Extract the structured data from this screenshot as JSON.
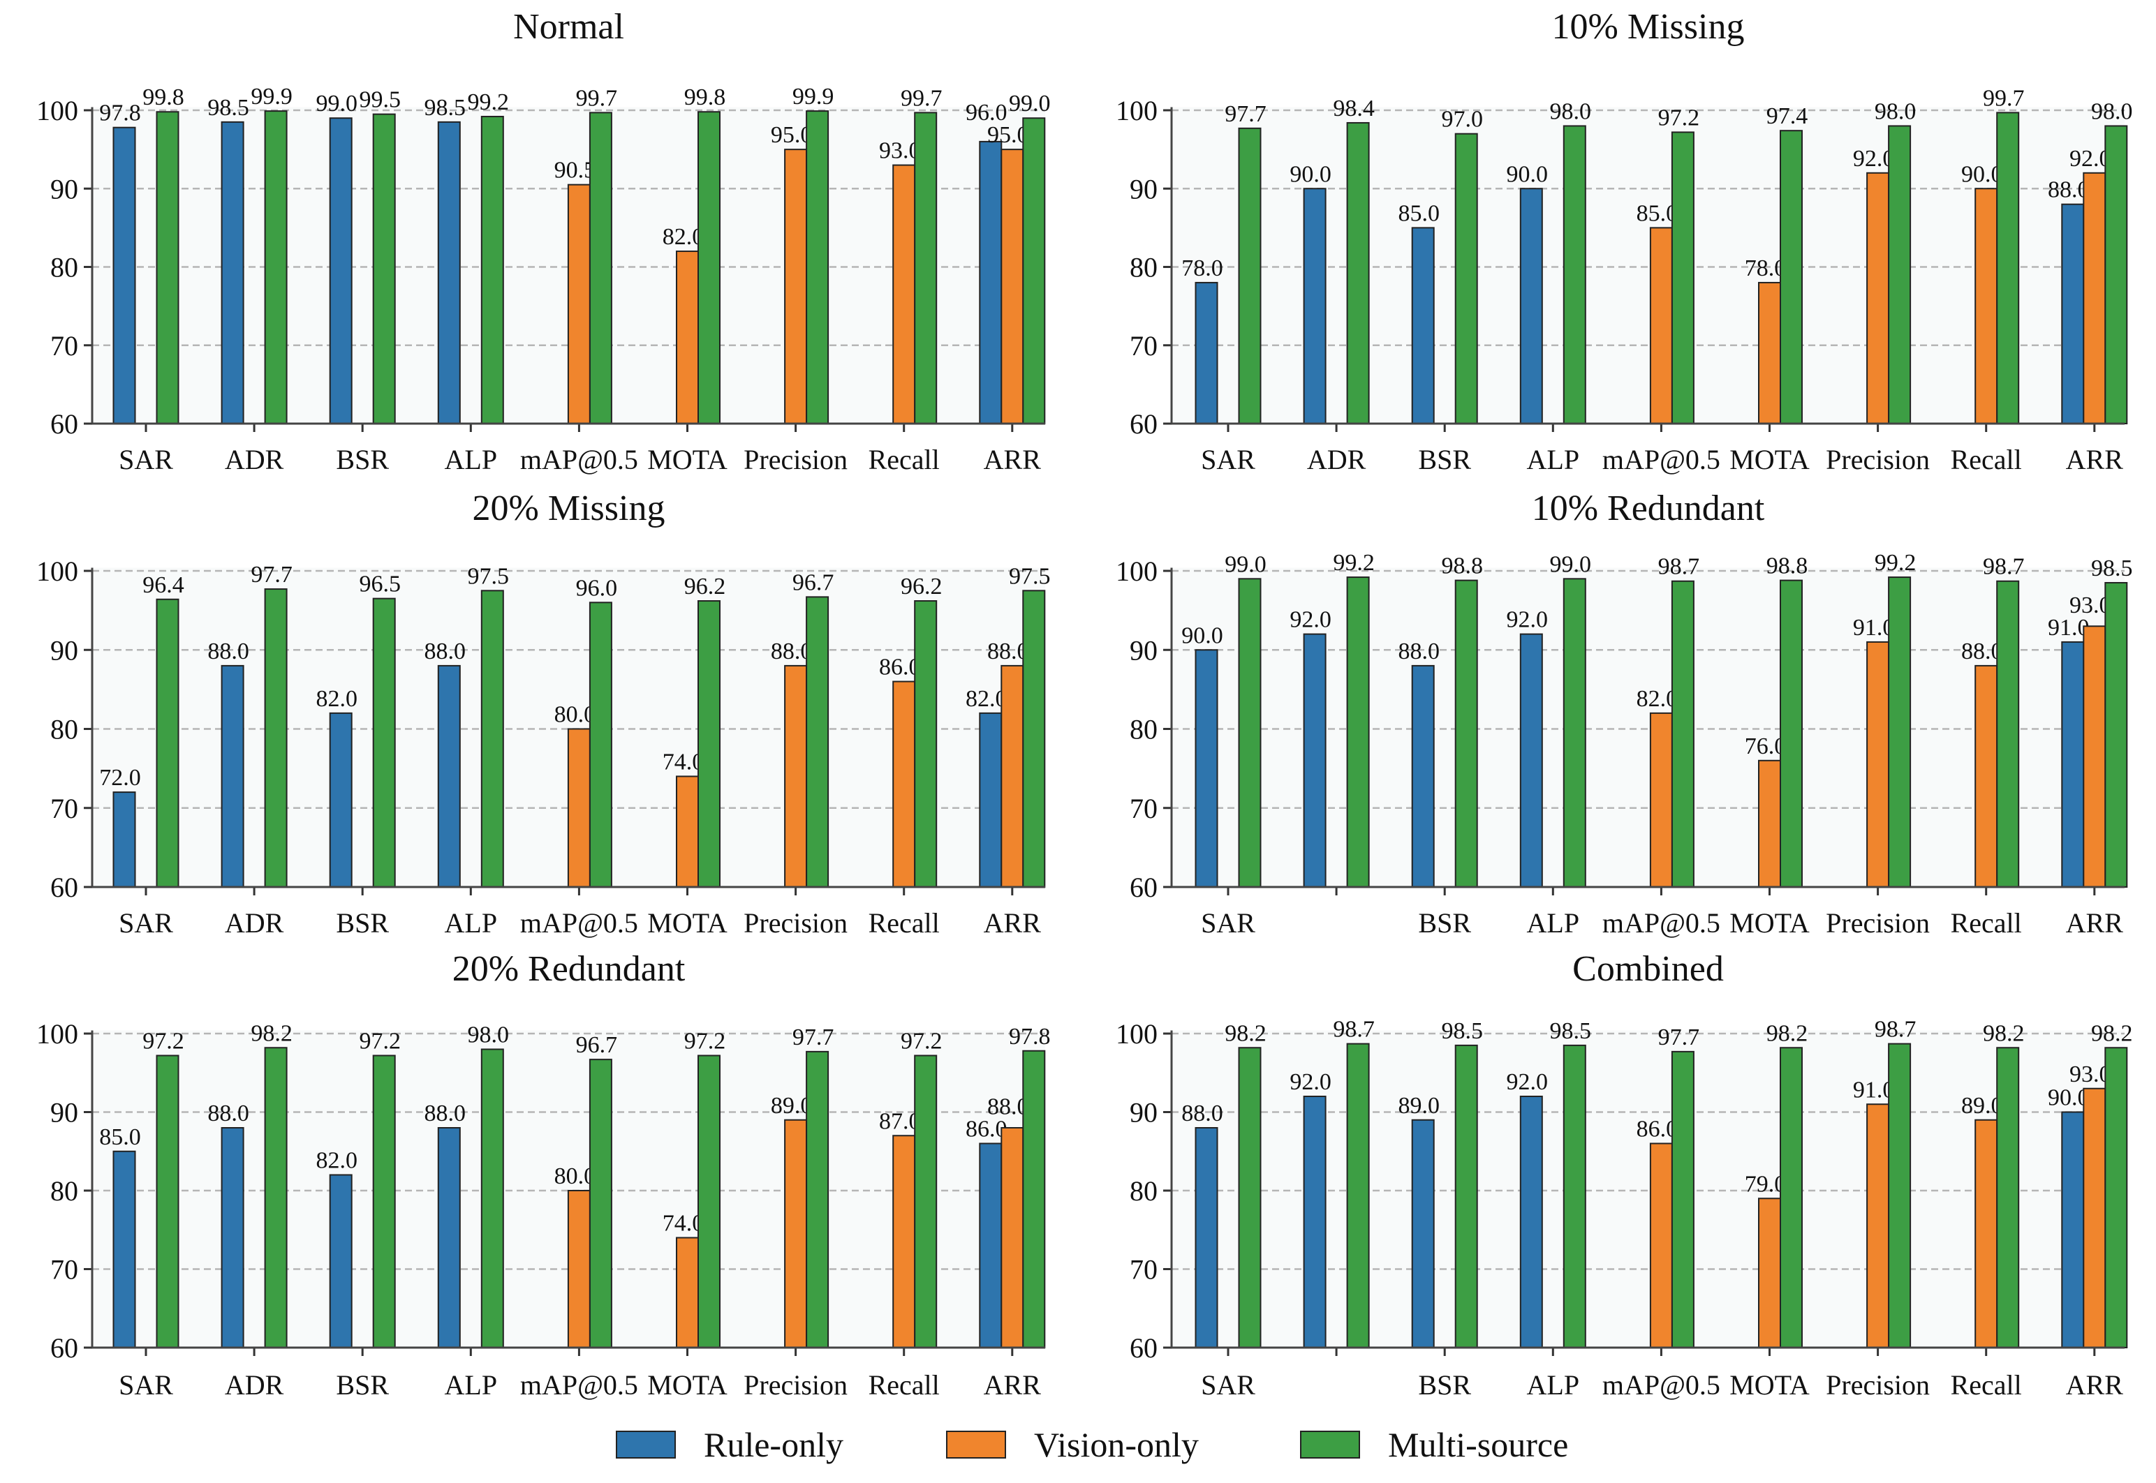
{
  "colors": {
    "rule": "#2e75ad",
    "vision": "#f0852d",
    "multi": "#3d9e44",
    "axes_bg": "#f8fafa",
    "grid": "#b5b5b5"
  },
  "legend": [
    {
      "label": "Rule-only",
      "series": "rule"
    },
    {
      "label": "Vision-only",
      "series": "vision"
    },
    {
      "label": "Multi-source",
      "series": "multi"
    }
  ],
  "chart_data": [
    {
      "type": "bar",
      "title": "Normal",
      "ylim": [
        60,
        100
      ],
      "yticks": [
        60,
        70,
        80,
        90,
        100
      ],
      "grid": true,
      "categories": [
        "SAR",
        "ADR",
        "BSR",
        "ALP",
        "mAP@0.5",
        "MOTA",
        "Precision",
        "Recall",
        "ARR"
      ],
      "series": [
        {
          "name": "Rule-only",
          "values": [
            97.8,
            98.5,
            99.0,
            98.5,
            null,
            null,
            null,
            null,
            96.0
          ]
        },
        {
          "name": "Vision-only",
          "values": [
            null,
            null,
            null,
            null,
            90.5,
            82.0,
            95.0,
            93.0,
            95.0
          ]
        },
        {
          "name": "Multi-source",
          "values": [
            99.8,
            99.9,
            99.5,
            99.2,
            99.7,
            99.8,
            99.9,
            99.7,
            99.0
          ]
        }
      ]
    },
    {
      "type": "bar",
      "title": "10% Missing",
      "ylim": [
        60,
        100
      ],
      "yticks": [
        60,
        70,
        80,
        90,
        100
      ],
      "grid": true,
      "categories": [
        "SAR",
        "ADR",
        "BSR",
        "ALP",
        "mAP@0.5",
        "MOTA",
        "Precision",
        "Recall",
        "ARR"
      ],
      "series": [
        {
          "name": "Rule-only",
          "values": [
            78.0,
            90.0,
            85.0,
            90.0,
            null,
            null,
            null,
            null,
            88.0
          ]
        },
        {
          "name": "Vision-only",
          "values": [
            null,
            null,
            null,
            null,
            85.0,
            78.0,
            92.0,
            90.0,
            92.0
          ]
        },
        {
          "name": "Multi-source",
          "values": [
            97.7,
            98.4,
            97.0,
            98.0,
            97.2,
            97.4,
            98.0,
            99.7,
            98.0
          ]
        }
      ]
    },
    {
      "type": "bar",
      "title": "20% Missing",
      "ylim": [
        60,
        100
      ],
      "yticks": [
        60,
        70,
        80,
        90,
        100
      ],
      "grid": true,
      "categories": [
        "SAR",
        "ADR",
        "BSR",
        "ALP",
        "mAP@0.5",
        "MOTA",
        "Precision",
        "Recall",
        "ARR"
      ],
      "series": [
        {
          "name": "Rule-only",
          "values": [
            72.0,
            88.0,
            82.0,
            88.0,
            null,
            null,
            null,
            null,
            82.0
          ]
        },
        {
          "name": "Vision-only",
          "values": [
            null,
            null,
            null,
            null,
            80.0,
            74.0,
            88.0,
            86.0,
            88.0
          ]
        },
        {
          "name": "Multi-source",
          "values": [
            96.4,
            97.7,
            96.5,
            97.5,
            96.0,
            96.2,
            96.7,
            96.2,
            97.5
          ]
        }
      ]
    },
    {
      "type": "bar",
      "title": "10% Redundant",
      "ylim": [
        60,
        100
      ],
      "yticks": [
        60,
        70,
        80,
        90,
        100
      ],
      "grid": true,
      "categories": [
        "SAR",
        "",
        "BSR",
        "ALP",
        "mAP@0.5",
        "MOTA",
        "Precision",
        "Recall",
        "ARR"
      ],
      "series": [
        {
          "name": "Rule-only",
          "values": [
            90.0,
            92.0,
            88.0,
            92.0,
            null,
            null,
            null,
            null,
            91.0
          ]
        },
        {
          "name": "Vision-only",
          "values": [
            null,
            null,
            null,
            null,
            82.0,
            76.0,
            91.0,
            88.0,
            93.0
          ]
        },
        {
          "name": "Multi-source",
          "values": [
            99.0,
            99.2,
            98.8,
            99.0,
            98.7,
            98.8,
            99.2,
            98.7,
            98.5
          ]
        }
      ]
    },
    {
      "type": "bar",
      "title": "20% Redundant",
      "ylim": [
        60,
        100
      ],
      "yticks": [
        60,
        70,
        80,
        90,
        100
      ],
      "grid": true,
      "categories": [
        "SAR",
        "ADR",
        "BSR",
        "ALP",
        "mAP@0.5",
        "MOTA",
        "Precision",
        "Recall",
        "ARR"
      ],
      "series": [
        {
          "name": "Rule-only",
          "values": [
            85.0,
            88.0,
            82.0,
            88.0,
            null,
            null,
            null,
            null,
            86.0
          ]
        },
        {
          "name": "Vision-only",
          "values": [
            null,
            null,
            null,
            null,
            80.0,
            74.0,
            89.0,
            87.0,
            88.0
          ]
        },
        {
          "name": "Multi-source",
          "values": [
            97.2,
            98.2,
            97.2,
            98.0,
            96.7,
            97.2,
            97.7,
            97.2,
            97.8
          ]
        }
      ]
    },
    {
      "type": "bar",
      "title": "Combined",
      "ylim": [
        60,
        100
      ],
      "yticks": [
        60,
        70,
        80,
        90,
        100
      ],
      "grid": true,
      "categories": [
        "SAR",
        "",
        "BSR",
        "ALP",
        "mAP@0.5",
        "MOTA",
        "Precision",
        "Recall",
        "ARR"
      ],
      "series": [
        {
          "name": "Rule-only",
          "values": [
            88.0,
            92.0,
            89.0,
            92.0,
            null,
            null,
            null,
            null,
            90.0
          ]
        },
        {
          "name": "Vision-only",
          "values": [
            null,
            null,
            null,
            null,
            86.0,
            79.0,
            91.0,
            89.0,
            93.0
          ]
        },
        {
          "name": "Multi-source",
          "values": [
            98.2,
            98.7,
            98.5,
            98.5,
            97.7,
            98.2,
            98.7,
            98.2,
            98.2
          ]
        }
      ]
    }
  ]
}
